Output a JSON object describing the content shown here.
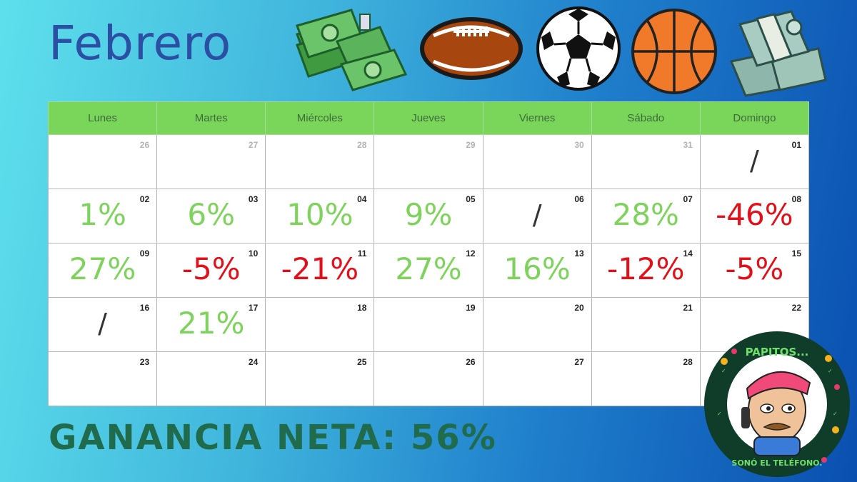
{
  "title": "Febrero",
  "weekdays": [
    "Lunes",
    "Martes",
    "Miércoles",
    "Jueves",
    "Viernes",
    "Sábado",
    "Domingo"
  ],
  "weeks": [
    [
      {
        "day": "26",
        "muted": true,
        "value": ""
      },
      {
        "day": "27",
        "muted": true,
        "value": ""
      },
      {
        "day": "28",
        "muted": true,
        "value": ""
      },
      {
        "day": "29",
        "muted": true,
        "value": ""
      },
      {
        "day": "30",
        "muted": true,
        "value": ""
      },
      {
        "day": "31",
        "muted": true,
        "value": ""
      },
      {
        "day": "01",
        "muted": false,
        "value": "/",
        "kind": "none"
      }
    ],
    [
      {
        "day": "02",
        "value": "1%",
        "kind": "pos"
      },
      {
        "day": "03",
        "value": "6%",
        "kind": "pos"
      },
      {
        "day": "04",
        "value": "10%",
        "kind": "pos"
      },
      {
        "day": "05",
        "value": "9%",
        "kind": "pos"
      },
      {
        "day": "06",
        "value": "/",
        "kind": "none"
      },
      {
        "day": "07",
        "value": "28%",
        "kind": "pos"
      },
      {
        "day": "08",
        "value": "-46%",
        "kind": "neg"
      }
    ],
    [
      {
        "day": "09",
        "value": "27%",
        "kind": "pos"
      },
      {
        "day": "10",
        "value": "-5%",
        "kind": "neg"
      },
      {
        "day": "11",
        "value": "-21%",
        "kind": "neg"
      },
      {
        "day": "12",
        "value": "27%",
        "kind": "pos"
      },
      {
        "day": "13",
        "value": "16%",
        "kind": "pos"
      },
      {
        "day": "14",
        "value": "-12%",
        "kind": "neg"
      },
      {
        "day": "15",
        "value": "-5%",
        "kind": "neg"
      }
    ],
    [
      {
        "day": "16",
        "value": "/",
        "kind": "none"
      },
      {
        "day": "17",
        "value": "21%",
        "kind": "pos"
      },
      {
        "day": "18",
        "value": ""
      },
      {
        "day": "19",
        "value": ""
      },
      {
        "day": "20",
        "value": ""
      },
      {
        "day": "21",
        "value": ""
      },
      {
        "day": "22",
        "value": ""
      }
    ],
    [
      {
        "day": "23",
        "value": ""
      },
      {
        "day": "24",
        "value": ""
      },
      {
        "day": "25",
        "value": ""
      },
      {
        "day": "26",
        "value": ""
      },
      {
        "day": "27",
        "value": ""
      },
      {
        "day": "28",
        "value": ""
      },
      {
        "day": "",
        "value": ""
      }
    ]
  ],
  "net_label": "GANANCIA NETA: 56%",
  "badge": {
    "top_text": "PAPITOS...",
    "bottom_text": "SONÓ EL TELÉFONO."
  },
  "icons": [
    "money-stack-icon",
    "american-football-icon",
    "soccer-ball-icon",
    "basketball-icon",
    "money-bundle-icon"
  ],
  "colors": {
    "positive": "#7ed35c",
    "negative": "#e3101a",
    "header": "#79d65a",
    "title": "#2b4fa3",
    "net": "#1f6b4c"
  }
}
